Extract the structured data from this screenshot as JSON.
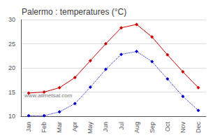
{
  "chart_data": {
    "type": "line",
    "title": "Palermo : temperatures (°C)",
    "categories": [
      "Jan",
      "Feb",
      "Mar",
      "Apr",
      "May",
      "Jun",
      "Jul",
      "Aug",
      "Sep",
      "Oct",
      "Nov",
      "Dec"
    ],
    "series": [
      {
        "color": "#cc0000",
        "line_style": "solid",
        "marker": "diamond",
        "values": [
          14.8,
          15.0,
          15.9,
          18.0,
          21.5,
          25.0,
          28.3,
          29.0,
          26.4,
          22.7,
          19.2,
          15.9
        ]
      },
      {
        "color": "#0000cc",
        "line_style": "dotted",
        "marker": "diamond",
        "values": [
          10.1,
          10.1,
          10.9,
          12.6,
          16.0,
          19.7,
          22.8,
          23.4,
          21.3,
          17.7,
          14.1,
          11.2
        ]
      }
    ],
    "ylim": [
      10,
      30
    ],
    "yticks": [
      10,
      15,
      20,
      25,
      30
    ],
    "grid": true,
    "annotations": [
      "www.allmetsat.com"
    ]
  }
}
